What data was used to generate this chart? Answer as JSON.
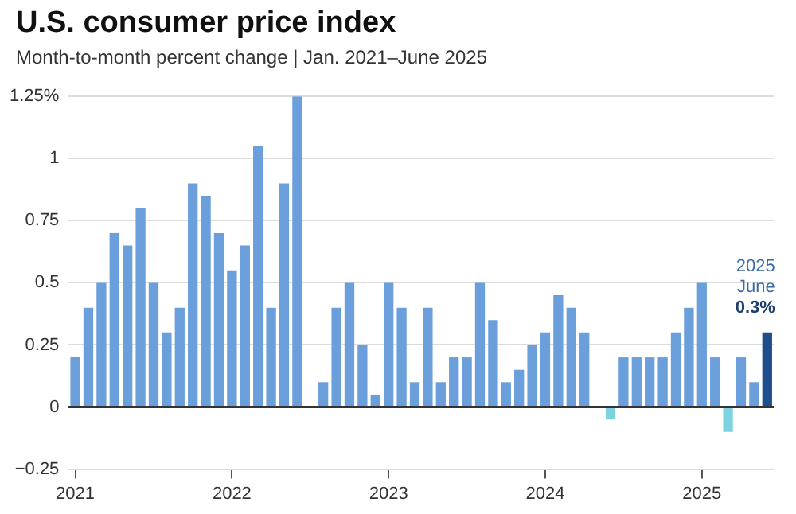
{
  "chart_data": {
    "type": "bar",
    "title": "U.S. consumer price index",
    "subtitle": "Month-to-month percent change | Jan. 2021–June 2025",
    "categories": [
      "2021",
      null,
      null,
      null,
      null,
      null,
      null,
      null,
      null,
      null,
      null,
      null,
      "2022",
      null,
      null,
      null,
      null,
      null,
      null,
      null,
      null,
      null,
      null,
      null,
      "2023",
      null,
      null,
      null,
      null,
      null,
      null,
      null,
      null,
      null,
      null,
      null,
      "2024",
      null,
      null,
      null,
      null,
      null,
      null,
      null,
      null,
      null,
      null,
      null,
      "2025",
      null,
      null,
      null,
      null,
      null
    ],
    "values": [
      0.2,
      0.4,
      0.5,
      0.7,
      0.65,
      0.8,
      0.5,
      0.3,
      0.4,
      0.9,
      0.85,
      0.7,
      0.55,
      0.65,
      1.05,
      0.4,
      0.9,
      1.25,
      0,
      0.1,
      0.4,
      0.5,
      0.25,
      0.05,
      0.5,
      0.4,
      0.1,
      0.4,
      0.1,
      0.2,
      0.2,
      0.5,
      0.35,
      0.1,
      0.15,
      0.25,
      0.3,
      0.45,
      0.4,
      0.3,
      0,
      -0.05,
      0.2,
      0.2,
      0.2,
      0.2,
      0.3,
      0.4,
      0.5,
      0.2,
      -0.1,
      0.2,
      0.1,
      0.3
    ],
    "colors": [
      "#6a9fdb",
      "#6a9fdb",
      "#6a9fdb",
      "#6a9fdb",
      "#6a9fdb",
      "#6a9fdb",
      "#6a9fdb",
      "#6a9fdb",
      "#6a9fdb",
      "#6a9fdb",
      "#6a9fdb",
      "#6a9fdb",
      "#6a9fdb",
      "#6a9fdb",
      "#6a9fdb",
      "#6a9fdb",
      "#6a9fdb",
      "#6a9fdb",
      "#6a9fdb",
      "#6a9fdb",
      "#6a9fdb",
      "#6a9fdb",
      "#6a9fdb",
      "#6a9fdb",
      "#6a9fdb",
      "#6a9fdb",
      "#6a9fdb",
      "#6a9fdb",
      "#6a9fdb",
      "#6a9fdb",
      "#6a9fdb",
      "#6a9fdb",
      "#6a9fdb",
      "#6a9fdb",
      "#6a9fdb",
      "#6a9fdb",
      "#6a9fdb",
      "#6a9fdb",
      "#6a9fdb",
      "#6a9fdb",
      "#6a9fdb",
      "#7dd3e0",
      "#6a9fdb",
      "#6a9fdb",
      "#6a9fdb",
      "#6a9fdb",
      "#6a9fdb",
      "#6a9fdb",
      "#6a9fdb",
      "#6a9fdb",
      "#7dd3e0",
      "#6a9fdb",
      "#6a9fdb",
      "#1f4e8c"
    ],
    "ylim": [
      -0.25,
      1.25
    ],
    "yticks": [
      {
        "value": -0.25,
        "label": "−0.25"
      },
      0,
      0.25,
      0.5,
      0.75,
      1,
      {
        "value": 1.25,
        "label": "1.25%"
      }
    ],
    "grid": "y",
    "legend": false,
    "annotations": [
      "2025\nJune\n0.3%"
    ]
  }
}
